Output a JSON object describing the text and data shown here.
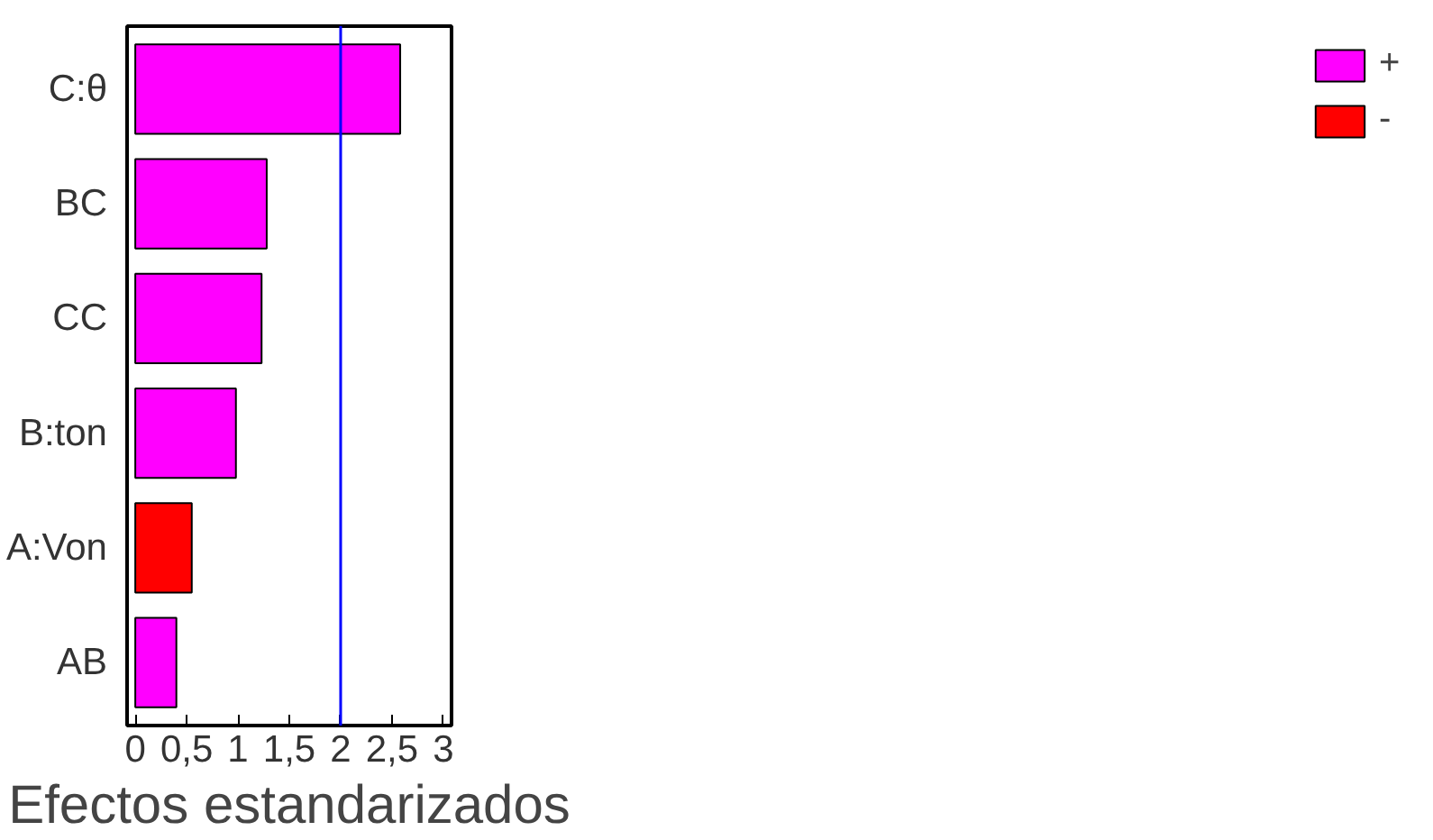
{
  "chart_data": {
    "type": "bar",
    "orientation": "horizontal",
    "xlabel": "Efectos estandarizados",
    "categories": [
      "C:θ",
      "BC",
      "CC",
      "B:ton",
      "A:Von",
      "AB"
    ],
    "series": [
      {
        "name": "+",
        "color": "#ff00ff",
        "values": [
          2.58,
          1.28,
          1.23,
          0.98,
          null,
          0.4
        ]
      },
      {
        "name": "-",
        "color": "#ff0000",
        "values": [
          null,
          null,
          null,
          null,
          0.55,
          null
        ]
      }
    ],
    "xlim": [
      -0.08,
      3.08
    ],
    "xticks": [
      0,
      {
        "value": 0.5,
        "label": "0,5"
      },
      1,
      {
        "value": 1.5,
        "label": "1,5"
      },
      2,
      {
        "value": 2.5,
        "label": "2,5"
      },
      3
    ],
    "ref_lines": [
      {
        "axis": "x",
        "value": 2.0,
        "color": "#0000ff"
      }
    ],
    "grid": false,
    "legend": "right"
  }
}
